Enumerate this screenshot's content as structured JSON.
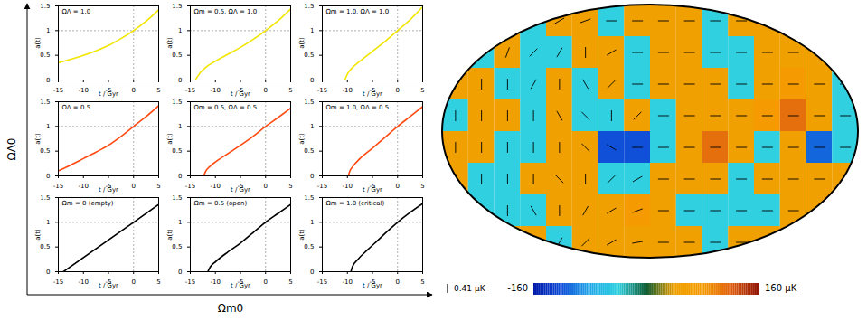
{
  "chart_data": [
    {
      "type": "panel_grid",
      "xlabel": "Ωm0",
      "ylabel": "ΩΛ0",
      "panel_xlabel": "t / Gyr",
      "panel_ylabel": "a(t)",
      "xlim": [
        -15,
        5
      ],
      "ylim": [
        0,
        1.5
      ],
      "xticks": [
        -15,
        -10,
        -5,
        0,
        5
      ],
      "yticks": [
        0,
        0.5,
        1,
        1.5
      ],
      "reference_lines": {
        "x": 0,
        "y": 1
      },
      "panels": [
        {
          "type": "line",
          "title": "ΩΛ = 1.0",
          "x": [
            -15,
            -12.5,
            -10,
            -7.5,
            -5,
            -2.5,
            0,
            2.5,
            5
          ],
          "series": [
            {
              "color": "#f2e600",
              "values": [
                0.35,
                0.42,
                0.5,
                0.59,
                0.7,
                0.84,
                1.0,
                1.19,
                1.42
              ]
            }
          ]
        },
        {
          "type": "line",
          "title": "Ωm = 0.5, ΩΛ = 1.0",
          "x": [
            -14,
            -13,
            -12,
            -10,
            -7.5,
            -5,
            -2.5,
            0,
            2.5,
            5
          ],
          "series": [
            {
              "color": "#f2e600",
              "values": [
                0,
                0.15,
                0.25,
                0.38,
                0.52,
                0.66,
                0.82,
                1.0,
                1.2,
                1.44
              ]
            }
          ]
        },
        {
          "type": "line",
          "title": "Ωm = 1.0, ΩΛ = 1.0",
          "x": [
            -10.5,
            -10,
            -9,
            -7.5,
            -5,
            -2.5,
            0,
            2.5,
            5
          ],
          "series": [
            {
              "color": "#f2e600",
              "values": [
                0,
                0.12,
                0.25,
                0.38,
                0.58,
                0.78,
                1.0,
                1.22,
                1.48
              ]
            }
          ]
        },
        {
          "type": "line",
          "title": "ΩΛ = 0.5",
          "x": [
            -15,
            -12.5,
            -10,
            -7.5,
            -5,
            -2.5,
            0,
            2.5,
            5
          ],
          "series": [
            {
              "color": "#ff4a12",
              "values": [
                0.1,
                0.22,
                0.35,
                0.48,
                0.62,
                0.8,
                1.0,
                1.2,
                1.42
              ]
            }
          ]
        },
        {
          "type": "line",
          "title": "Ωm = 0.5, ΩΛ = 0.5",
          "x": [
            -12.3,
            -12,
            -11,
            -10,
            -7.5,
            -5,
            -2.5,
            0,
            2.5,
            5
          ],
          "series": [
            {
              "color": "#ff4a12",
              "values": [
                0,
                0.08,
                0.2,
                0.28,
                0.45,
                0.62,
                0.8,
                1.0,
                1.18,
                1.37
              ]
            }
          ]
        },
        {
          "type": "line",
          "title": "Ωm = 1.0, ΩΛ = 0.5",
          "x": [
            -9.8,
            -9.5,
            -9,
            -7.5,
            -5,
            -2.5,
            0,
            2.5,
            5
          ],
          "series": [
            {
              "color": "#ff4a12",
              "values": [
                0,
                0.1,
                0.18,
                0.35,
                0.56,
                0.78,
                1.0,
                1.2,
                1.4
              ]
            }
          ]
        },
        {
          "type": "line",
          "title": "Ωm = 0 (empty)",
          "x": [
            -14,
            0,
            5
          ],
          "series": [
            {
              "color": "#000000",
              "values": [
                0,
                1.0,
                1.36
              ]
            }
          ]
        },
        {
          "type": "line",
          "title": "Ωm = 0.5 (open)",
          "x": [
            -11.5,
            -11,
            -10,
            -7.5,
            -5,
            -2.5,
            0,
            2.5,
            5
          ],
          "series": [
            {
              "color": "#000000",
              "values": [
                0,
                0.1,
                0.2,
                0.4,
                0.58,
                0.79,
                1.0,
                1.18,
                1.36
              ]
            }
          ]
        },
        {
          "type": "line",
          "title": "Ωm = 1.0 (critical)",
          "x": [
            -9.3,
            -9,
            -8,
            -6,
            -4,
            -2,
            0,
            2.5,
            5
          ],
          "series": [
            {
              "color": "#000000",
              "values": [
                0,
                0.1,
                0.24,
                0.44,
                0.63,
                0.82,
                1.0,
                1.2,
                1.38
              ]
            }
          ]
        }
      ]
    },
    {
      "type": "map",
      "tick_labels": false,
      "xlim": [
        -180,
        180
      ],
      "ylim": [
        -90,
        90
      ],
      "x": [
        -168.75,
        -146.25,
        -123.75,
        -101.25,
        -78.75,
        -56.25,
        -33.75,
        -11.25,
        11.25,
        33.75,
        56.25,
        78.75,
        101.25,
        123.75,
        146.25,
        168.75
      ],
      "y": [
        78.75,
        56.25,
        33.75,
        11.25,
        -11.25,
        -33.75,
        -56.25,
        -78.75
      ],
      "values": [
        [
          40,
          40,
          40,
          -40,
          40,
          40,
          -40,
          40,
          40,
          40,
          -40,
          40,
          40,
          40,
          40,
          40
        ],
        [
          40,
          -40,
          40,
          -40,
          -40,
          40,
          40,
          -40,
          40,
          40,
          -40,
          -40,
          40,
          40,
          40,
          40
        ],
        [
          40,
          40,
          -40,
          -40,
          40,
          -40,
          40,
          -40,
          40,
          40,
          40,
          -40,
          40,
          80,
          40,
          -40
        ],
        [
          -40,
          40,
          40,
          -40,
          40,
          -40,
          -40,
          40,
          -40,
          40,
          40,
          40,
          80,
          110,
          40,
          -40
        ],
        [
          40,
          40,
          -40,
          -40,
          40,
          40,
          -120,
          -120,
          -40,
          40,
          110,
          40,
          -40,
          40,
          -110,
          -40
        ],
        [
          40,
          -40,
          -40,
          40,
          40,
          40,
          -40,
          -40,
          40,
          40,
          40,
          -40,
          40,
          40,
          40,
          40
        ],
        [
          40,
          -40,
          -40,
          -40,
          40,
          40,
          40,
          80,
          40,
          -40,
          -40,
          -40,
          -40,
          40,
          40,
          40
        ],
        [
          40,
          40,
          40,
          40,
          -40,
          40,
          40,
          40,
          40,
          40,
          -40,
          40,
          40,
          40,
          40,
          40
        ]
      ],
      "angles": [
        [
          90,
          80,
          60,
          45,
          30,
          20,
          0,
          0,
          0,
          0,
          0,
          0,
          0,
          0,
          10,
          20
        ],
        [
          90,
          90,
          70,
          45,
          60,
          90,
          30,
          0,
          0,
          0,
          0,
          0,
          0,
          0,
          0,
          10
        ],
        [
          80,
          90,
          90,
          60,
          90,
          120,
          45,
          0,
          0,
          0,
          0,
          0,
          0,
          0,
          0,
          0
        ],
        [
          90,
          90,
          90,
          90,
          120,
          135,
          90,
          45,
          0,
          0,
          0,
          0,
          0,
          0,
          0,
          0
        ],
        [
          90,
          90,
          90,
          90,
          90,
          135,
          150,
          0,
          0,
          0,
          0,
          0,
          0,
          0,
          0,
          0
        ],
        [
          90,
          90,
          90,
          90,
          135,
          90,
          45,
          30,
          0,
          0,
          0,
          0,
          0,
          0,
          0,
          20
        ],
        [
          80,
          90,
          90,
          120,
          90,
          60,
          30,
          20,
          0,
          0,
          0,
          0,
          0,
          0,
          0,
          30
        ],
        [
          60,
          80,
          90,
          90,
          60,
          45,
          30,
          10,
          0,
          0,
          0,
          0,
          0,
          0,
          20,
          45
        ]
      ],
      "vector_scale_label": "0.41 μK",
      "colorbar": {
        "range": [
          -160,
          160
        ],
        "ticks": [
          {
            "value": -160,
            "label": "-160"
          },
          {
            "value": 160,
            "label": "160 μK"
          }
        ],
        "colors": [
          "#0018a8",
          "#1050d8",
          "#20a8e8",
          "#30d0e0",
          "#0a5a30",
          "#f0a000",
          "#f59a00",
          "#e06010",
          "#8c0c00"
        ]
      }
    }
  ]
}
